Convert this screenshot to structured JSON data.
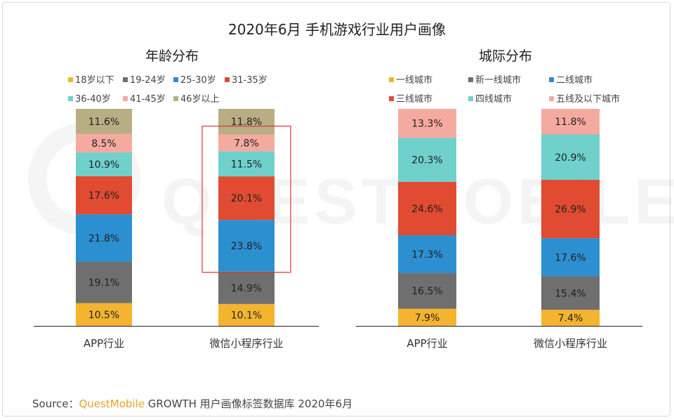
{
  "title": "2020年6月 手机游戏行业用户画像",
  "source": {
    "prefix": "Source：",
    "brand": "QuestMobile",
    "rest": " GROWTH 用户画像标签数据库 2020年6月"
  },
  "watermark": "QUESTMOBILE",
  "chart_data": [
    {
      "type": "bar",
      "stacked": true,
      "title": "年龄分布",
      "categories": [
        "APP行业",
        "微信小程序行业"
      ],
      "series": [
        {
          "name": "18岁以下",
          "color": "#f4b430",
          "values": [
            10.5,
            10.1
          ]
        },
        {
          "name": "19-24岁",
          "color": "#6f6f6f",
          "values": [
            19.1,
            14.9
          ]
        },
        {
          "name": "25-30岁",
          "color": "#2c8fd0",
          "values": [
            21.8,
            23.8
          ]
        },
        {
          "name": "31-35岁",
          "color": "#e04b32",
          "values": [
            17.6,
            20.1
          ]
        },
        {
          "name": "36-40岁",
          "color": "#6fd0cc",
          "values": [
            10.9,
            11.5
          ]
        },
        {
          "name": "41-45岁",
          "color": "#f5aaa0",
          "values": [
            8.5,
            7.8
          ]
        },
        {
          "name": "46岁以上",
          "color": "#b9ad84",
          "values": [
            11.6,
            11.8
          ]
        }
      ],
      "ylim": [
        0,
        100
      ],
      "highlight": {
        "category": "微信小程序行业",
        "series": [
          "25-30岁",
          "31-35岁",
          "36-40岁"
        ],
        "color": "#d9373b"
      }
    },
    {
      "type": "bar",
      "stacked": true,
      "title": "城际分布",
      "categories": [
        "APP行业",
        "微信小程序行业"
      ],
      "series": [
        {
          "name": "一线城市",
          "color": "#f4b430",
          "values": [
            7.9,
            7.4
          ]
        },
        {
          "name": "新一线城市",
          "color": "#6f6f6f",
          "values": [
            16.5,
            15.4
          ]
        },
        {
          "name": "二线城市",
          "color": "#2c8fd0",
          "values": [
            17.3,
            17.6
          ]
        },
        {
          "name": "三线城市",
          "color": "#e04b32",
          "values": [
            24.6,
            26.9
          ]
        },
        {
          "name": "四线城市",
          "color": "#6fd0cc",
          "values": [
            20.3,
            20.9
          ]
        },
        {
          "name": "五线及以下城市",
          "color": "#f5aaa0",
          "values": [
            13.3,
            11.8
          ]
        }
      ],
      "ylim": [
        0,
        100
      ]
    }
  ]
}
